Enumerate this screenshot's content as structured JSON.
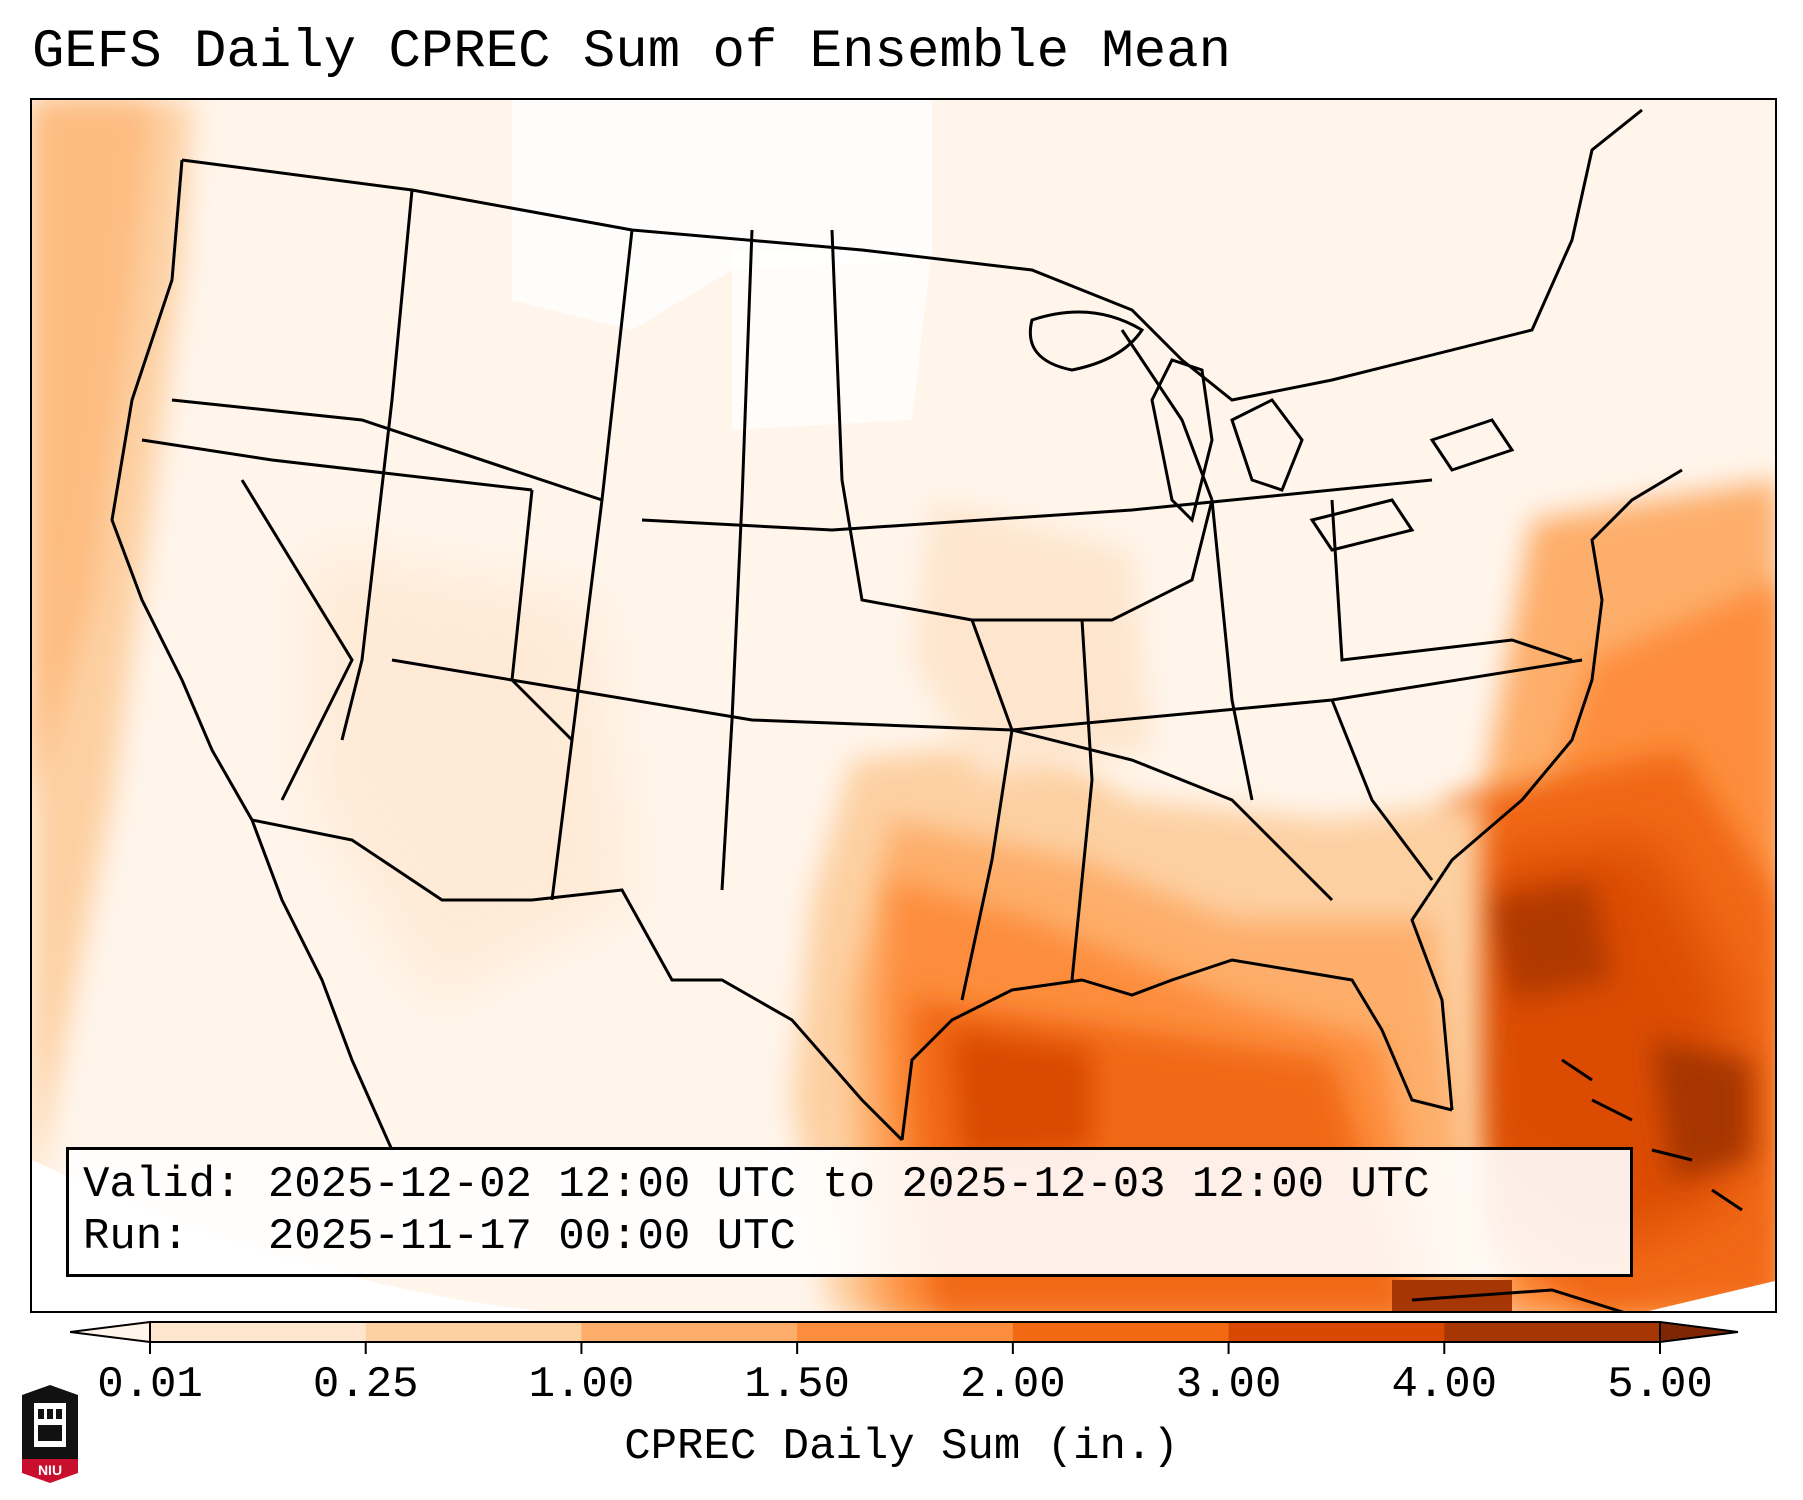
{
  "title": "GEFS Daily CPREC Sum of Ensemble Mean",
  "valid_label": "Valid:",
  "valid_value": "2025-12-02 12:00 UTC to 2025-12-03 12:00 UTC",
  "run_label": "Run:",
  "run_value": "2025-11-17 00:00 UTC",
  "colorbar": {
    "label": "CPREC Daily Sum (in.)",
    "ticks": [
      "0.01",
      "0.25",
      "1.00",
      "1.50",
      "2.00",
      "3.00",
      "4.00",
      "5.00"
    ],
    "colors": [
      "#fff5eb",
      "#fee6ce",
      "#fdd0a2",
      "#fdae6b",
      "#fd8d3c",
      "#f16913",
      "#d94801",
      "#a63603",
      "#7f2704"
    ]
  },
  "logo": {
    "text": "NIU",
    "icon": "niu-logo-icon"
  }
}
